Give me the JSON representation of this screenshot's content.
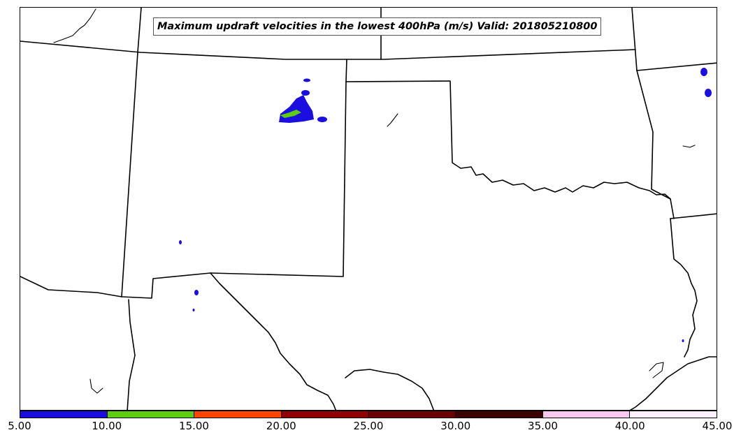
{
  "title": "Maximum updraft velocities in the lowest 400hPa (m/s) Valid: 201805210800",
  "colorbar": {
    "min": 5,
    "max": 45,
    "colors": [
      "#1a0ee0",
      "#5ccd10",
      "#ff4500",
      "#900000",
      "#6a0000",
      "#3c0000",
      "#f8c8f0",
      "#fff0ff"
    ],
    "labels": [
      "5.00",
      "10.00",
      "15.00",
      "20.00",
      "25.00",
      "30.00",
      "35.00",
      "40.00",
      "45.00"
    ]
  }
}
